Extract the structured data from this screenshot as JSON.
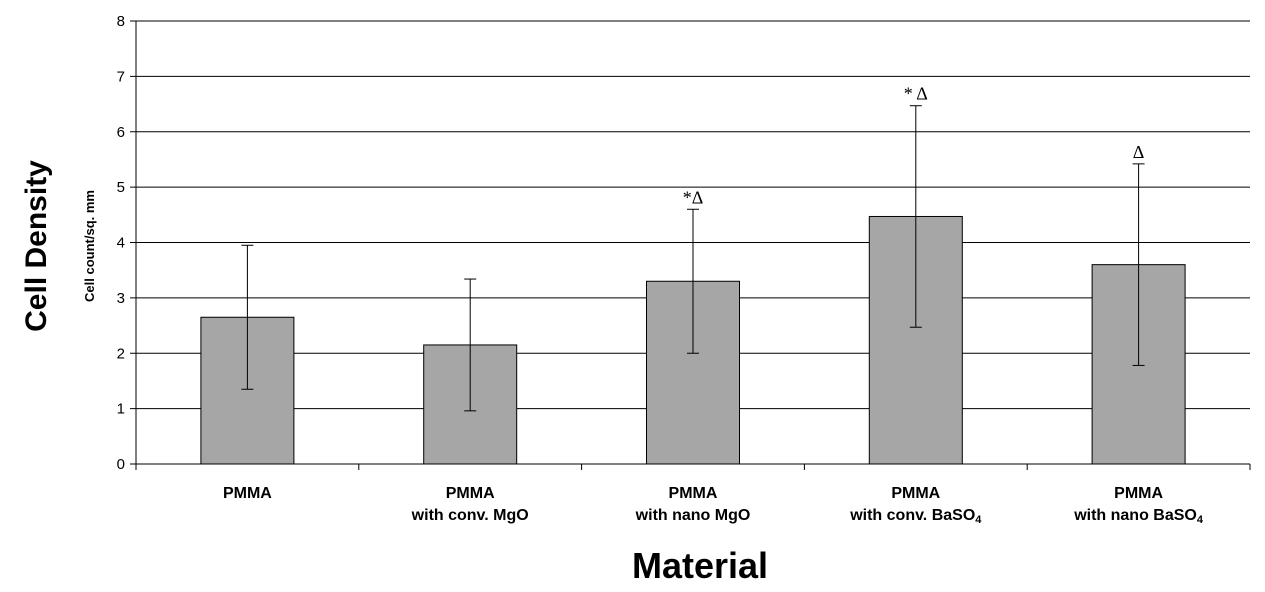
{
  "chart_data": {
    "type": "bar",
    "categories": [
      {
        "line1": "PMMA",
        "line2": "",
        "sub": ""
      },
      {
        "line1": "PMMA",
        "line2": "with conv. MgO",
        "sub": ""
      },
      {
        "line1": "PMMA",
        "line2": "with nano MgO",
        "sub": ""
      },
      {
        "line1": "PMMA",
        "line2": "with conv. BaSO",
        "sub": "4"
      },
      {
        "line1": "PMMA",
        "line2": "with nano BaSO",
        "sub": "4"
      }
    ],
    "values": [
      2.65,
      2.15,
      3.3,
      4.47,
      3.6
    ],
    "errors": [
      1.3,
      1.19,
      1.3,
      2.0,
      1.82
    ],
    "annotations": [
      "",
      "",
      "*Δ",
      "* Δ",
      "Δ"
    ],
    "xlabel": "Material",
    "ylabel": "Cell Density",
    "ylabel_sub": "Cell count/sq. mm",
    "ylim": [
      0,
      8
    ],
    "yticks": [
      0,
      1,
      2,
      3,
      4,
      5,
      6,
      7,
      8
    ],
    "grid": true,
    "colors": {
      "bar": "#a6a6a6",
      "bar_stroke": "#000000",
      "grid": "#000000",
      "axis": "#000000"
    }
  }
}
